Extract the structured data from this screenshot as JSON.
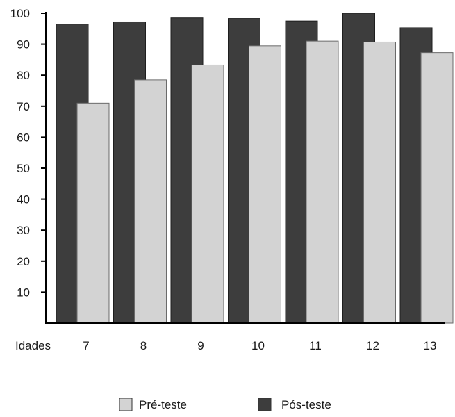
{
  "chart_data": {
    "type": "bar",
    "title": "",
    "xlabel": "Idades",
    "ylabel": "",
    "categories": [
      "7",
      "8",
      "9",
      "10",
      "11",
      "12",
      "13"
    ],
    "ylim": [
      0,
      100
    ],
    "yticks": [
      10,
      20,
      30,
      40,
      50,
      60,
      70,
      80,
      90,
      100
    ],
    "grid": false,
    "legend_position": "bottom",
    "series": [
      {
        "name": "Pós-teste",
        "color": "#3d3d3d",
        "values": [
          96.5,
          97.2,
          98.5,
          98.3,
          97.5,
          100,
          95.3
        ]
      },
      {
        "name": "Pré-teste",
        "color": "#d3d3d3",
        "values": [
          71,
          78.5,
          83.3,
          89.5,
          91,
          90.7,
          87.3
        ]
      }
    ]
  }
}
